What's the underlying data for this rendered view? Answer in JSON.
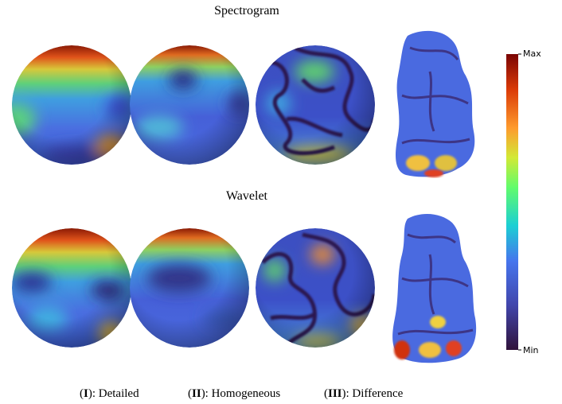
{
  "rows": [
    {
      "title": "Spectrogram"
    },
    {
      "title": "Wavelet"
    }
  ],
  "colorbar": {
    "max": "Max",
    "min": "Min"
  },
  "captions": [
    {
      "open": "(",
      "numeral": "I",
      "rest": "): Detailed"
    },
    {
      "open": "(",
      "numeral": "II",
      "rest": "): Homogeneous"
    },
    {
      "open": "(",
      "numeral": "III",
      "rest": "): Difference"
    }
  ]
}
